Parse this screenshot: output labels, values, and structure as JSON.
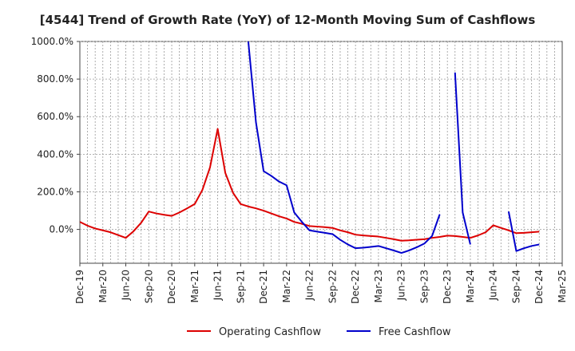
{
  "chart_data": {
    "type": "line",
    "title": "[4544]  Trend of Growth Rate (YoY) of 12-Month Moving Sum of Cashflows",
    "xlabel": "",
    "ylabel": "",
    "y_unit": "%",
    "ylim": [
      -180,
      1000
    ],
    "yticks": [
      0,
      200,
      400,
      600,
      800,
      1000
    ],
    "ytick_labels": [
      "0.0%",
      "200.0%",
      "400.0%",
      "600.0%",
      "800.0%",
      "1000.0%"
    ],
    "x_start": "Dec-19",
    "x_end": "Mar-25",
    "xtick_labels": [
      "Dec-19",
      "Mar-20",
      "Jun-20",
      "Sep-20",
      "Dec-20",
      "Mar-21",
      "Jun-21",
      "Sep-21",
      "Dec-21",
      "Mar-22",
      "Jun-22",
      "Sep-22",
      "Dec-22",
      "Mar-23",
      "Jun-23",
      "Sep-23",
      "Dec-23",
      "Mar-24",
      "Jun-24",
      "Sep-24",
      "Dec-24",
      "Mar-25"
    ],
    "grid": true,
    "legend_position": "bottom",
    "series": [
      {
        "name": "Operating Cashflow",
        "color": "#dd0000",
        "points": [
          [
            "Dec-19",
            40
          ],
          [
            "Jan-20",
            20
          ],
          [
            "Feb-20",
            5
          ],
          [
            "Mar-20",
            -5
          ],
          [
            "Apr-20",
            -15
          ],
          [
            "May-20",
            -30
          ],
          [
            "Jun-20",
            -45
          ],
          [
            "Jul-20",
            -10
          ],
          [
            "Aug-20",
            35
          ],
          [
            "Sep-20",
            95
          ],
          [
            "Oct-20",
            85
          ],
          [
            "Nov-20",
            78
          ],
          [
            "Dec-20",
            72
          ],
          [
            "Jan-21",
            90
          ],
          [
            "Feb-21",
            112
          ],
          [
            "Mar-21",
            135
          ],
          [
            "Apr-21",
            210
          ],
          [
            "May-21",
            330
          ],
          [
            "Jun-21",
            535
          ],
          [
            "Jul-21",
            300
          ],
          [
            "Aug-21",
            195
          ],
          [
            "Sep-21",
            135
          ],
          [
            "Oct-21",
            122
          ],
          [
            "Nov-21",
            112
          ],
          [
            "Dec-21",
            100
          ],
          [
            "Jan-22",
            85
          ],
          [
            "Feb-22",
            70
          ],
          [
            "Mar-22",
            58
          ],
          [
            "Apr-22",
            40
          ],
          [
            "May-22",
            30
          ],
          [
            "Jun-22",
            18
          ],
          [
            "Jul-22",
            15
          ],
          [
            "Aug-22",
            12
          ],
          [
            "Sep-22",
            8
          ],
          [
            "Oct-22",
            -5
          ],
          [
            "Nov-22",
            -15
          ],
          [
            "Dec-22",
            -28
          ],
          [
            "Jan-23",
            -32
          ],
          [
            "Feb-23",
            -35
          ],
          [
            "Mar-23",
            -38
          ],
          [
            "Apr-23",
            -45
          ],
          [
            "May-23",
            -52
          ],
          [
            "Jun-23",
            -60
          ],
          [
            "Jul-23",
            -58
          ],
          [
            "Aug-23",
            -55
          ],
          [
            "Sep-23",
            -52
          ],
          [
            "Oct-23",
            -45
          ],
          [
            "Nov-23",
            -40
          ],
          [
            "Dec-23",
            -33
          ],
          [
            "Jan-24",
            -35
          ],
          [
            "Feb-24",
            -40
          ],
          [
            "Mar-24",
            -45
          ],
          [
            "Apr-24",
            -32
          ],
          [
            "May-24",
            -15
          ],
          [
            "Jun-24",
            22
          ],
          [
            "Jul-24",
            8
          ],
          [
            "Aug-24",
            -5
          ],
          [
            "Sep-24",
            -20
          ],
          [
            "Oct-24",
            -18
          ],
          [
            "Nov-24",
            -15
          ],
          [
            "Dec-24",
            -12
          ]
        ]
      },
      {
        "name": "Free Cashflow",
        "color": "#0000cc",
        "segments": [
          [
            [
              "Oct-21",
              1000
            ],
            [
              "Nov-21",
              570
            ],
            [
              "Dec-21",
              310
            ],
            [
              "Jan-22",
              285
            ],
            [
              "Feb-22",
              255
            ],
            [
              "Mar-22",
              235
            ],
            [
              "Apr-22",
              90
            ],
            [
              "May-22",
              40
            ],
            [
              "Jun-22",
              -5
            ],
            [
              "Jul-22",
              -12
            ],
            [
              "Aug-22",
              -18
            ],
            [
              "Sep-22",
              -25
            ],
            [
              "Oct-22",
              -55
            ],
            [
              "Nov-22",
              -80
            ],
            [
              "Dec-22",
              -100
            ],
            [
              "Jan-23",
              -97
            ],
            [
              "Feb-23",
              -93
            ],
            [
              "Mar-23",
              -88
            ],
            [
              "Apr-23",
              -100
            ],
            [
              "May-23",
              -112
            ],
            [
              "Jun-23",
              -125
            ],
            [
              "Jul-23",
              -112
            ],
            [
              "Aug-23",
              -95
            ],
            [
              "Sep-23",
              -75
            ],
            [
              "Oct-23",
              -35
            ],
            [
              "Nov-23",
              80
            ]
          ],
          [
            [
              "Jan-24",
              835
            ],
            [
              "Feb-24",
              90
            ],
            [
              "Mar-24",
              -80
            ]
          ],
          [
            [
              "Aug-24",
              95
            ],
            [
              "Sep-24",
              -115
            ],
            [
              "Oct-24",
              -100
            ],
            [
              "Nov-24",
              -88
            ],
            [
              "Dec-24",
              -80
            ]
          ]
        ]
      }
    ]
  }
}
